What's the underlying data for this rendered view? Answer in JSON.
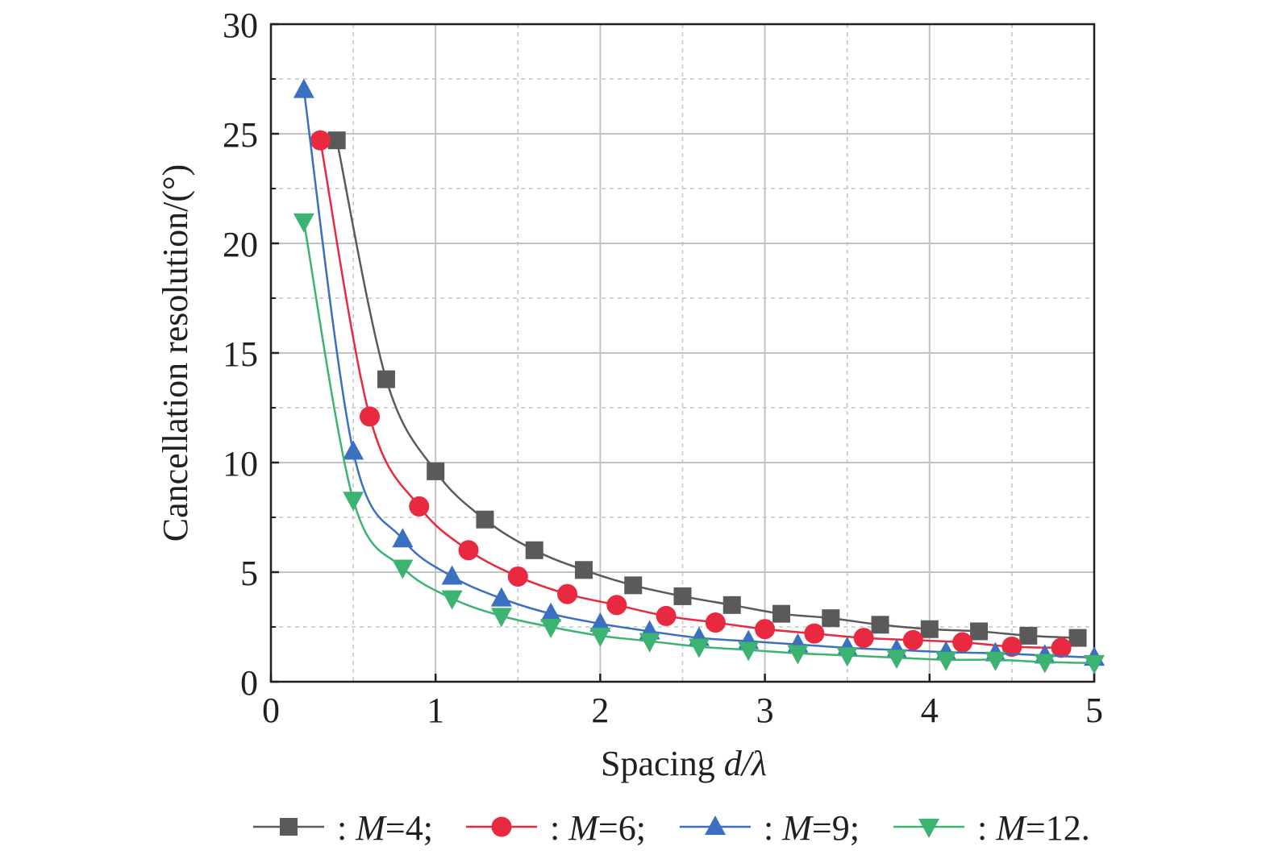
{
  "chart_data": {
    "type": "line",
    "title": "",
    "xlabel_prefix": "Spacing ",
    "xlabel_var": "d/λ",
    "ylabel": "Cancellation resolution/(°)",
    "xlim": [
      0,
      5
    ],
    "ylim": [
      0,
      30
    ],
    "x_ticks": [
      "0",
      "1",
      "2",
      "3",
      "4",
      "5"
    ],
    "y_ticks": [
      "0",
      "5",
      "10",
      "15",
      "20",
      "25",
      "30"
    ],
    "grid": true,
    "series": [
      {
        "name": "M=4",
        "marker": "square",
        "color": "#5a5a5a",
        "x": [
          0.4,
          0.7,
          1.0,
          1.3,
          1.6,
          1.9,
          2.2,
          2.5,
          2.8,
          3.1,
          3.4,
          3.7,
          4.0,
          4.3,
          4.6,
          4.9
        ],
        "y": [
          24.7,
          13.8,
          9.6,
          7.4,
          6.0,
          5.1,
          4.4,
          3.9,
          3.5,
          3.1,
          2.9,
          2.6,
          2.4,
          2.3,
          2.1,
          2.0
        ]
      },
      {
        "name": "M=6",
        "marker": "circle",
        "color": "#e8293f",
        "x": [
          0.3,
          0.6,
          0.9,
          1.2,
          1.5,
          1.8,
          2.1,
          2.4,
          2.7,
          3.0,
          3.3,
          3.6,
          3.9,
          4.2,
          4.5,
          4.8
        ],
        "y": [
          24.7,
          12.1,
          8.0,
          6.0,
          4.8,
          4.0,
          3.5,
          3.0,
          2.7,
          2.4,
          2.2,
          2.0,
          1.9,
          1.8,
          1.6,
          1.55
        ]
      },
      {
        "name": "M=9",
        "marker": "triangle-up",
        "color": "#3a6fc2",
        "x": [
          0.2,
          0.5,
          0.8,
          1.1,
          1.4,
          1.7,
          2.0,
          2.3,
          2.6,
          2.9,
          3.2,
          3.5,
          3.8,
          4.1,
          4.4,
          4.7,
          5.0
        ],
        "y": [
          27.0,
          10.5,
          6.5,
          4.8,
          3.8,
          3.1,
          2.65,
          2.3,
          2.0,
          1.85,
          1.7,
          1.55,
          1.45,
          1.35,
          1.3,
          1.2,
          1.1
        ]
      },
      {
        "name": "M=12",
        "marker": "triangle-down",
        "color": "#3cb371",
        "x": [
          0.2,
          0.5,
          0.8,
          1.1,
          1.4,
          1.7,
          2.0,
          2.3,
          2.6,
          2.9,
          3.2,
          3.5,
          3.8,
          4.1,
          4.4,
          4.7,
          5.0
        ],
        "y": [
          21.0,
          8.3,
          5.2,
          3.8,
          3.0,
          2.5,
          2.1,
          1.85,
          1.6,
          1.45,
          1.3,
          1.2,
          1.1,
          1.0,
          1.0,
          0.9,
          0.85
        ]
      }
    ],
    "legend": {
      "placement": "bottom",
      "entries": [
        {
          "label": ": M=4;",
          "var": "M",
          "value": "=4;"
        },
        {
          "label": ": M=6;",
          "var": "M",
          "value": "=6;"
        },
        {
          "label": ": M=9;",
          "var": "M",
          "value": "=9;"
        },
        {
          "label": ": M=12.",
          "var": "M",
          "value": "=12."
        }
      ]
    }
  }
}
